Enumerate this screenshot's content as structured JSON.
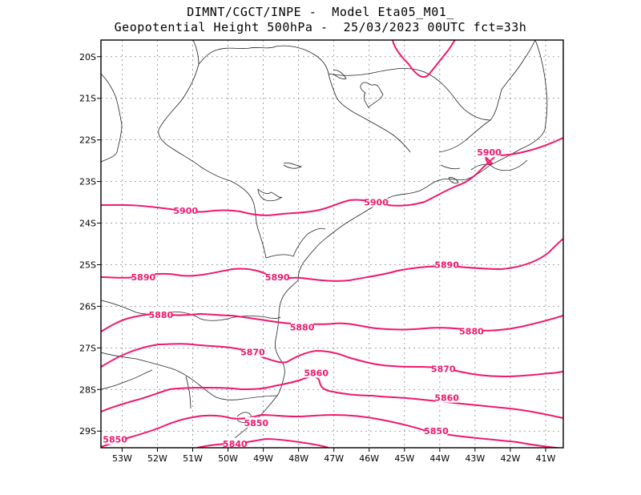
{
  "header": {
    "line1": "DIMNT/CGCT/INPE -  Model Eta05_M01_",
    "line2": "Geopotential Height 500hPa -  25/03/2023 00UTC fct=33h"
  },
  "colors": {
    "contour": "#f0186e",
    "coast": "#222222",
    "grid": "#888888",
    "frame": "#000000"
  },
  "map": {
    "lon_range": [
      -53.6,
      -40.5
    ],
    "lat_range": [
      -29.4,
      -19.6
    ],
    "lon_ticks": [
      "53W",
      "52W",
      "51W",
      "50W",
      "49W",
      "48W",
      "47W",
      "46W",
      "45W",
      "44W",
      "43W",
      "42W",
      "41W"
    ],
    "lat_ticks": [
      "20S",
      "21S",
      "22S",
      "23S",
      "24S",
      "25S",
      "26S",
      "27S",
      "28S",
      "29S"
    ],
    "grid": "dotted",
    "contour_labels": [
      {
        "text": "5900",
        "lon": -42.6,
        "lat": -22.3
      },
      {
        "text": "5900",
        "lon": -51.2,
        "lat": -23.7
      },
      {
        "text": "5900",
        "lon": -45.8,
        "lat": -23.5
      },
      {
        "text": "5890",
        "lon": -52.4,
        "lat": -25.3
      },
      {
        "text": "5890",
        "lon": -48.6,
        "lat": -25.3
      },
      {
        "text": "5890",
        "lon": -43.8,
        "lat": -25.0
      },
      {
        "text": "5880",
        "lon": -51.9,
        "lat": -26.2
      },
      {
        "text": "5880",
        "lon": -47.9,
        "lat": -26.5
      },
      {
        "text": "5880",
        "lon": -43.1,
        "lat": -26.6
      },
      {
        "text": "5870",
        "lon": -49.3,
        "lat": -27.1
      },
      {
        "text": "5870",
        "lon": -43.9,
        "lat": -27.5
      },
      {
        "text": "5860",
        "lon": -47.5,
        "lat": -27.6
      },
      {
        "text": "5860",
        "lon": -43.8,
        "lat": -28.2
      },
      {
        "text": "5850",
        "lon": -49.2,
        "lat": -28.8
      },
      {
        "text": "5850",
        "lon": -44.1,
        "lat": -29.0
      },
      {
        "text": "5850",
        "lon": -53.2,
        "lat": -29.2
      },
      {
        "text": "5840",
        "lon": -49.8,
        "lat": -29.3
      }
    ]
  }
}
